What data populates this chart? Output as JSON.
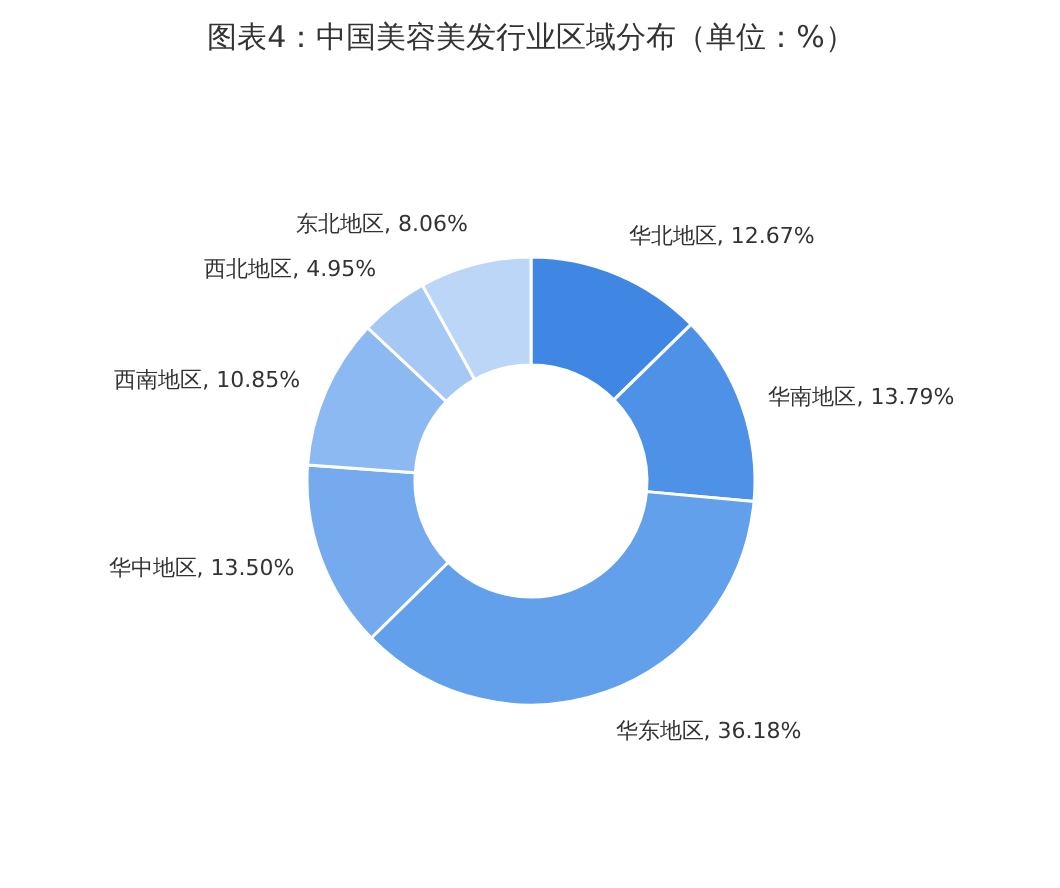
{
  "chart_data": {
    "type": "donut",
    "title": "图表4：中国美容美发行业区域分布（单位：%）",
    "categories": [
      "华北地区",
      "华南地区",
      "华东地区",
      "华中地区",
      "西南地区",
      "西北地区",
      "东北地区"
    ],
    "values": [
      12.67,
      13.79,
      36.18,
      13.5,
      10.85,
      4.95,
      8.06
    ],
    "value_labels": [
      "12.67%",
      "13.79%",
      "36.18%",
      "13.50%",
      "10.85%",
      "4.95%",
      "8.06%"
    ],
    "colors": [
      "#3f87e3",
      "#4e92e8",
      "#62a0ec",
      "#75abee",
      "#8cb9f1",
      "#a6c8f4",
      "#bcd6f7"
    ]
  }
}
